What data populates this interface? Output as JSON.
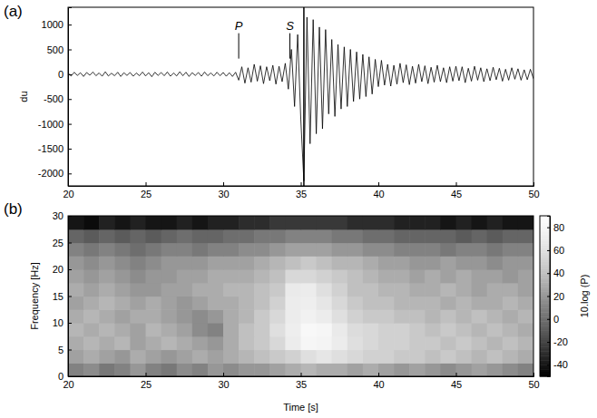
{
  "chart_data": [
    {
      "panel": "(a)",
      "type": "line",
      "ylabel": "du",
      "color": "#000000",
      "x": [
        20,
        20.2,
        20.4,
        20.6,
        20.8,
        21,
        21.2,
        21.4,
        21.6,
        21.8,
        22,
        22.2,
        22.4,
        22.6,
        22.8,
        23,
        23.2,
        23.4,
        23.6,
        23.8,
        24,
        24.2,
        24.4,
        24.6,
        24.8,
        25,
        25.2,
        25.4,
        25.6,
        25.8,
        26,
        26.2,
        26.4,
        26.6,
        26.8,
        27,
        27.2,
        27.4,
        27.6,
        27.8,
        28,
        28.2,
        28.4,
        28.6,
        28.8,
        29,
        29.2,
        29.4,
        29.6,
        29.8,
        30,
        30.2,
        30.4,
        30.6,
        30.8,
        31,
        31.2,
        31.4,
        31.6,
        31.8,
        32,
        32.2,
        32.4,
        32.6,
        32.8,
        33,
        33.2,
        33.4,
        33.6,
        33.8,
        34,
        34.2,
        34.4,
        34.6,
        34.8,
        35,
        35.2,
        35.4,
        35.6,
        35.8,
        36,
        36.2,
        36.4,
        36.6,
        36.8,
        37,
        37.2,
        37.4,
        37.6,
        37.8,
        38,
        38.2,
        38.4,
        38.6,
        38.8,
        39,
        39.2,
        39.4,
        39.6,
        39.8,
        40,
        40.2,
        40.4,
        40.6,
        40.8,
        41,
        41.2,
        41.4,
        41.6,
        41.8,
        42,
        42.2,
        42.4,
        42.6,
        42.8,
        43,
        43.2,
        43.4,
        43.6,
        43.8,
        44,
        44.2,
        44.4,
        44.6,
        44.8,
        45,
        45.2,
        45.4,
        45.6,
        45.8,
        46,
        46.2,
        46.4,
        46.6,
        46.8,
        47,
        47.2,
        47.4,
        47.6,
        47.8,
        48,
        48.2,
        48.4,
        48.6,
        48.8,
        49,
        49.2,
        49.4,
        49.6,
        49.8,
        50
      ],
      "values": [
        20,
        -35,
        40,
        -25,
        30,
        -45,
        35,
        -20,
        45,
        -30,
        25,
        -40,
        50,
        -35,
        20,
        -30,
        40,
        -45,
        30,
        -25,
        35,
        -40,
        25,
        -30,
        45,
        -35,
        30,
        -50,
        40,
        -25,
        35,
        -30,
        45,
        -40,
        25,
        -35,
        50,
        -30,
        40,
        -45,
        30,
        -25,
        35,
        -40,
        45,
        -30,
        25,
        -35,
        40,
        -30,
        35,
        -40,
        30,
        -45,
        40,
        -120,
        150,
        -180,
        130,
        -160,
        200,
        -140,
        170,
        -190,
        150,
        -130,
        180,
        -200,
        160,
        -150,
        220,
        -300,
        500,
        -650,
        800,
        -900,
        -2150,
        1150,
        -1400,
        1100,
        -1200,
        950,
        -1100,
        900,
        -800,
        700,
        -850,
        600,
        -700,
        550,
        -650,
        500,
        -550,
        450,
        -500,
        400,
        -450,
        350,
        -400,
        300,
        -250,
        280,
        -220,
        200,
        -240,
        180,
        -200,
        220,
        -170,
        190,
        -210,
        160,
        -180,
        200,
        -150,
        170,
        -190,
        140,
        -160,
        180,
        -150,
        130,
        -170,
        150,
        -140,
        160,
        -130,
        150,
        -170,
        120,
        -140,
        160,
        -120,
        130,
        -150,
        110,
        -130,
        140,
        -110,
        120,
        -140,
        100,
        -120,
        130,
        -100,
        110,
        -120,
        90,
        -110,
        100,
        -90
      ],
      "xlim": [
        20,
        50
      ],
      "ylim": [
        -2250,
        1350
      ],
      "xticks": [
        20,
        25,
        30,
        35,
        40,
        45,
        50
      ],
      "yticks": [
        -2000,
        -1500,
        -1000,
        -500,
        0,
        500,
        1000
      ],
      "annotations": [
        {
          "text": "P",
          "x": 31,
          "y": 900
        },
        {
          "text": "S",
          "x": 34.3,
          "y": 900
        }
      ],
      "lines": [
        {
          "x": 35.2
        }
      ]
    },
    {
      "panel": "(b)",
      "type": "heatmap",
      "xlabel": "Time [s]",
      "ylabel": "Frequency [Hz]",
      "x_edges": [
        20,
        21,
        22,
        23,
        24,
        25,
        26,
        27,
        28,
        29,
        30,
        31,
        32,
        33,
        34,
        35,
        36,
        37,
        38,
        39,
        40,
        41,
        42,
        43,
        44,
        45,
        46,
        47,
        48,
        49,
        50
      ],
      "y_edges": [
        0,
        2.5,
        5,
        7.5,
        10,
        12.5,
        15,
        17.5,
        20,
        22.5,
        25,
        27.5,
        30
      ],
      "z": [
        [
          10,
          15,
          5,
          10,
          20,
          10,
          5,
          15,
          10,
          20,
          15,
          20,
          20,
          25,
          30,
          35,
          30,
          30,
          25,
          30,
          25,
          20,
          25,
          20,
          15,
          20,
          25,
          20,
          15,
          10
        ],
        [
          25,
          30,
          25,
          20,
          30,
          25,
          20,
          25,
          30,
          25,
          30,
          35,
          40,
          45,
          50,
          60,
          65,
          60,
          55,
          50,
          50,
          45,
          45,
          40,
          45,
          40,
          35,
          40,
          35,
          30
        ],
        [
          30,
          35,
          30,
          35,
          25,
          30,
          35,
          30,
          25,
          20,
          30,
          40,
          45,
          55,
          70,
          80,
          78,
          70,
          60,
          55,
          50,
          50,
          45,
          45,
          40,
          45,
          40,
          35,
          40,
          35
        ],
        [
          35,
          30,
          35,
          30,
          25,
          35,
          30,
          25,
          15,
          10,
          30,
          40,
          45,
          60,
          72,
          82,
          80,
          68,
          58,
          55,
          50,
          50,
          45,
          40,
          45,
          40,
          35,
          40,
          35,
          30
        ],
        [
          30,
          35,
          30,
          25,
          30,
          30,
          25,
          20,
          15,
          20,
          30,
          35,
          45,
          55,
          70,
          75,
          70,
          60,
          50,
          45,
          45,
          40,
          40,
          35,
          40,
          35,
          40,
          35,
          30,
          35
        ],
        [
          25,
          30,
          35,
          30,
          25,
          30,
          25,
          20,
          25,
          30,
          30,
          35,
          40,
          50,
          70,
          72,
          65,
          55,
          45,
          40,
          40,
          35,
          35,
          35,
          30,
          35,
          30,
          30,
          35,
          30
        ],
        [
          30,
          25,
          30,
          25,
          20,
          20,
          25,
          25,
          30,
          30,
          35,
          35,
          40,
          45,
          68,
          70,
          60,
          50,
          40,
          40,
          35,
          35,
          30,
          30,
          35,
          30,
          25,
          30,
          30,
          25
        ],
        [
          25,
          20,
          25,
          20,
          15,
          20,
          20,
          25,
          25,
          30,
          30,
          30,
          35,
          40,
          55,
          55,
          50,
          45,
          40,
          35,
          30,
          30,
          25,
          30,
          25,
          30,
          25,
          25,
          20,
          25
        ],
        [
          20,
          15,
          20,
          15,
          10,
          15,
          20,
          20,
          20,
          25,
          25,
          25,
          30,
          35,
          40,
          45,
          40,
          35,
          35,
          30,
          25,
          25,
          20,
          20,
          25,
          20,
          20,
          15,
          20,
          20
        ],
        [
          10,
          5,
          10,
          5,
          0,
          5,
          10,
          10,
          5,
          10,
          10,
          15,
          15,
          20,
          25,
          25,
          25,
          20,
          20,
          15,
          15,
          10,
          10,
          10,
          5,
          10,
          10,
          5,
          10,
          10
        ],
        [
          -5,
          -10,
          -5,
          -10,
          -5,
          -10,
          -5,
          0,
          -5,
          -5,
          0,
          0,
          5,
          5,
          10,
          10,
          10,
          5,
          5,
          0,
          0,
          -5,
          -5,
          -5,
          -5,
          -10,
          -5,
          -10,
          -5,
          -5
        ],
        [
          -40,
          -45,
          -35,
          -40,
          -35,
          -40,
          -40,
          -35,
          -40,
          -35,
          -35,
          -30,
          -30,
          -25,
          -25,
          -25,
          -25,
          -25,
          -30,
          -30,
          -30,
          -35,
          -35,
          -35,
          -40,
          -35,
          -40,
          -35,
          -40,
          -40
        ]
      ],
      "xlim": [
        20,
        50
      ],
      "ylim": [
        0,
        30
      ],
      "xticks": [
        20,
        25,
        30,
        35,
        40,
        45,
        50
      ],
      "yticks": [
        0,
        5,
        10,
        15,
        20,
        25,
        30
      ],
      "colorbar": {
        "label": "10.log (P)",
        "range": [
          -50,
          90
        ],
        "ticks": [
          -40,
          -20,
          0,
          20,
          40,
          60,
          80
        ]
      }
    }
  ]
}
